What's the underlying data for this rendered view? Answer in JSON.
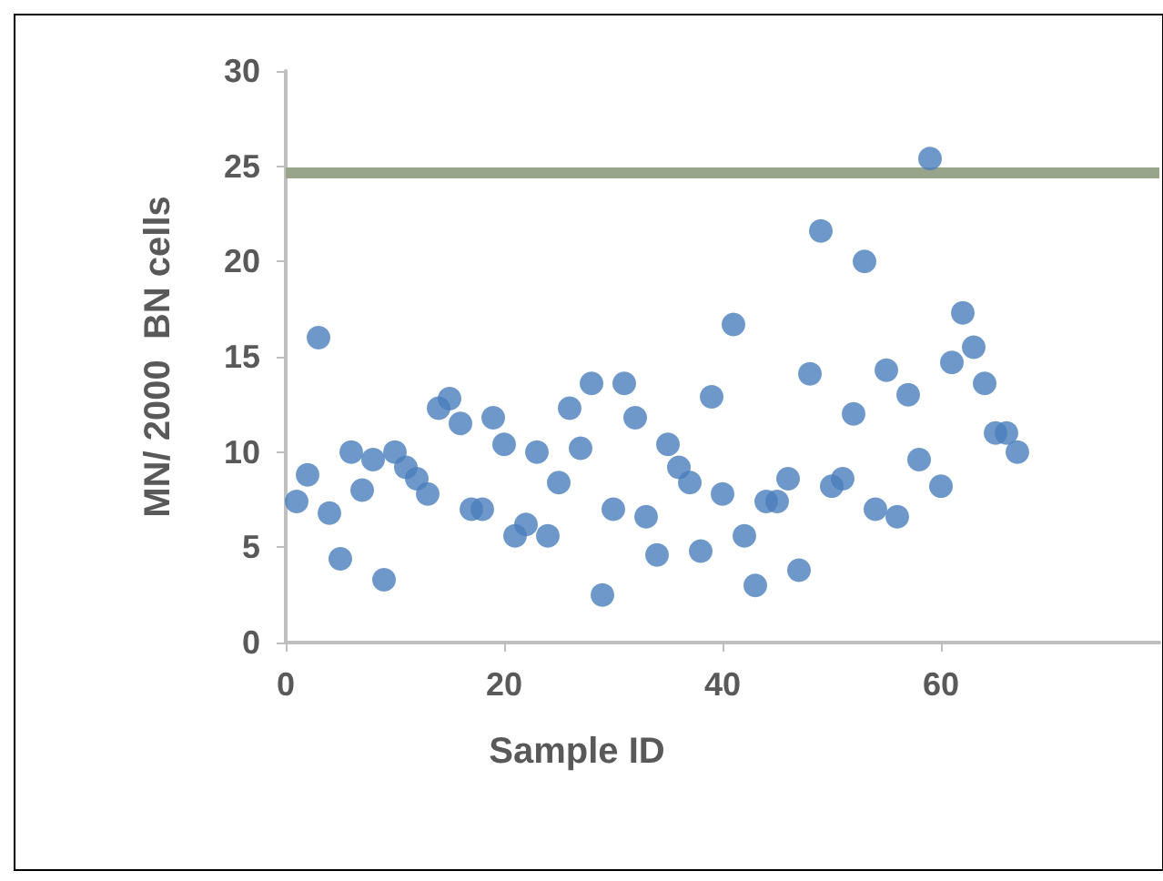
{
  "chart_data": {
    "type": "scatter",
    "xlabel": "Sample ID",
    "ylabel": "MN/ 2000  BN cells",
    "x": [
      1,
      2,
      3,
      4,
      5,
      6,
      7,
      8,
      9,
      10,
      11,
      12,
      13,
      14,
      15,
      16,
      17,
      18,
      19,
      20,
      21,
      22,
      23,
      24,
      25,
      26,
      27,
      28,
      29,
      30,
      31,
      32,
      33,
      34,
      35,
      36,
      37,
      38,
      39,
      40,
      41,
      42,
      43,
      44,
      45,
      46,
      47,
      48,
      49,
      50,
      51,
      52,
      53,
      54,
      55,
      56,
      57,
      58,
      59,
      60,
      61,
      62,
      63,
      64,
      65,
      66,
      67
    ],
    "series": [
      {
        "color": "#4a7ebb",
        "values": [
          7.4,
          8.8,
          16,
          6.8,
          4.4,
          10,
          8,
          9.6,
          3.3,
          10,
          9.2,
          8.6,
          7.8,
          12.3,
          12.8,
          11.5,
          7,
          7,
          11.8,
          10.4,
          5.6,
          6.2,
          10,
          5.6,
          8.4,
          12.3,
          10.2,
          13.6,
          2.5,
          7,
          13.6,
          11.8,
          6.6,
          4.6,
          10.4,
          9.2,
          8.4,
          4.8,
          12.9,
          7.8,
          16.7,
          5.6,
          3,
          7.4,
          7.4,
          8.6,
          3.8,
          14.1,
          21.6,
          8.2,
          8.6,
          12,
          20,
          7,
          14.3,
          6.6,
          13,
          9.6,
          25.4,
          8.2,
          14.7,
          17.3,
          15.5,
          13.6,
          11,
          11,
          10
        ]
      }
    ],
    "xlim": [
      0,
      80
    ],
    "xticks": [
      0,
      20,
      40,
      60
    ],
    "ylim": [
      0,
      30
    ],
    "yticks": [
      0,
      5,
      10,
      15,
      20,
      25,
      30
    ],
    "ref_lines": [
      {
        "axis": "y",
        "value": 24.7,
        "color": "#98a58a"
      }
    ],
    "grid": false,
    "marker": "circle"
  }
}
